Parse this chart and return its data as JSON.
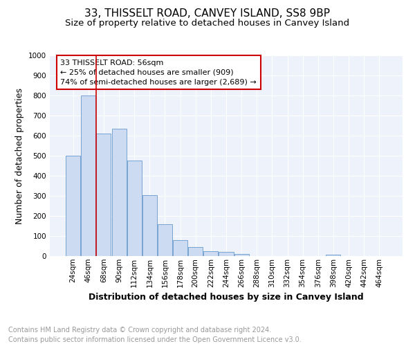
{
  "title1": "33, THISSELT ROAD, CANVEY ISLAND, SS8 9BP",
  "title2": "Size of property relative to detached houses in Canvey Island",
  "xlabel": "Distribution of detached houses by size in Canvey Island",
  "ylabel": "Number of detached properties",
  "footer1": "Contains HM Land Registry data © Crown copyright and database right 2024.",
  "footer2": "Contains public sector information licensed under the Open Government Licence v3.0.",
  "bin_labels": [
    "24sqm",
    "46sqm",
    "68sqm",
    "90sqm",
    "112sqm",
    "134sqm",
    "156sqm",
    "178sqm",
    "200sqm",
    "222sqm",
    "244sqm",
    "266sqm",
    "288sqm",
    "310sqm",
    "332sqm",
    "354sqm",
    "376sqm",
    "398sqm",
    "420sqm",
    "442sqm",
    "464sqm"
  ],
  "bar_heights": [
    500,
    800,
    610,
    635,
    475,
    302,
    160,
    78,
    45,
    25,
    20,
    10,
    0,
    0,
    0,
    0,
    0,
    8,
    0,
    0,
    0
  ],
  "bar_color": "#ccdaf2",
  "bar_edge_color": "#6699cc",
  "vline_x_idx": 1.5,
  "vline_color": "#cc0000",
  "annotation_text": "33 THISSELT ROAD: 56sqm\n← 25% of detached houses are smaller (909)\n74% of semi-detached houses are larger (2,689) →",
  "annotation_box_color": "#ffffff",
  "annotation_box_edge": "#cc0000",
  "ylim": [
    0,
    1000
  ],
  "yticks": [
    0,
    100,
    200,
    300,
    400,
    500,
    600,
    700,
    800,
    900,
    1000
  ],
  "background_color": "#eef2fa",
  "grid_color": "#ffffff",
  "title1_fontsize": 11,
  "title2_fontsize": 9.5,
  "xlabel_fontsize": 9,
  "ylabel_fontsize": 9,
  "tick_fontsize": 7.5,
  "footer_fontsize": 7,
  "annotation_fontsize": 8
}
